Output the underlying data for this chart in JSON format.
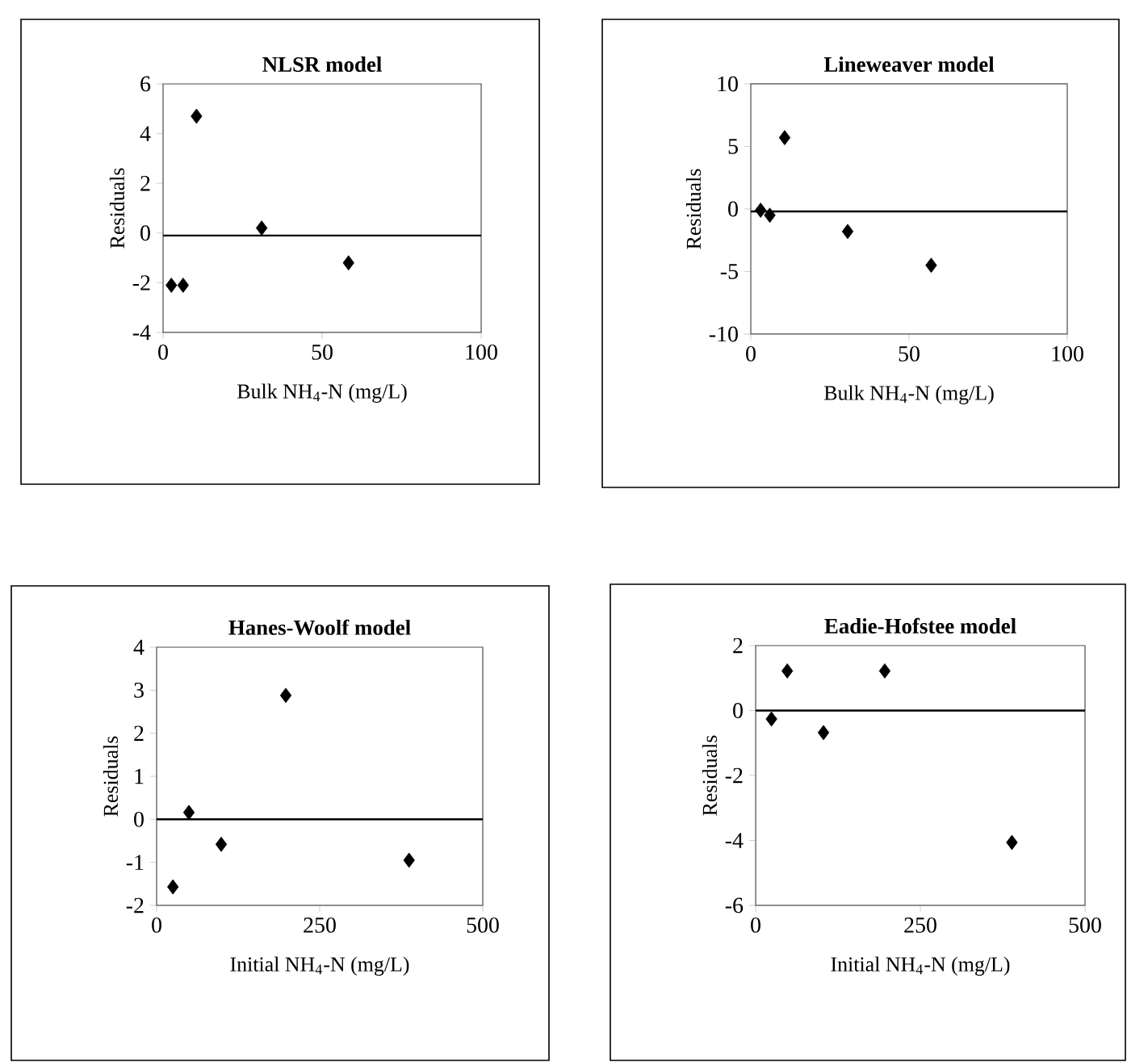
{
  "chart_data": [
    {
      "type": "scatter",
      "title": "NLSR model",
      "xlabel": "Bulk NH$_{4}$-N (mg/L)",
      "ylabel": "Residuals",
      "x": [
        2.6,
        6.3,
        10.5,
        31,
        58.3
      ],
      "series": [
        {
          "color": "#000000",
          "values": [
            -2.1,
            -2.1,
            4.7,
            0.2,
            -1.2
          ]
        }
      ],
      "xlim": [
        0,
        100
      ],
      "ylim": [
        -4,
        6
      ],
      "xticks": [
        0,
        50,
        100
      ],
      "yticks": [
        -4,
        -2,
        0,
        2,
        4,
        6
      ],
      "marker": "diamond",
      "ref_lines": [
        {
          "axis": "y",
          "value": -0.1,
          "color": "#000000"
        }
      ]
    },
    {
      "type": "scatter",
      "title": "Lineweaver model",
      "xlabel": "Bulk NH$_{4}$-N (mg/L)",
      "ylabel": "Residuals",
      "x": [
        3.1,
        6,
        10.7,
        30.6,
        57
      ],
      "series": [
        {
          "color": "#000000",
          "values": [
            -0.1,
            -0.5,
            5.7,
            -1.8,
            -4.5
          ]
        }
      ],
      "xlim": [
        0,
        100
      ],
      "ylim": [
        -10,
        10
      ],
      "xticks": [
        0,
        50,
        100
      ],
      "yticks": [
        -10,
        -5,
        0,
        5,
        10
      ],
      "marker": "diamond",
      "ref_lines": [
        {
          "axis": "y",
          "value": -0.2,
          "color": "#000000"
        }
      ]
    },
    {
      "type": "scatter",
      "title": "Hanes-Woolf model",
      "xlabel": "Initial  NH$_{4}$-N (mg/L)",
      "ylabel": "Residuals",
      "x": [
        25,
        49.5,
        99,
        198,
        387
      ],
      "series": [
        {
          "color": "#000000",
          "values": [
            -1.57,
            0.16,
            -0.58,
            2.88,
            -0.95
          ]
        }
      ],
      "xlim": [
        0,
        500
      ],
      "ylim": [
        -2,
        4
      ],
      "xticks": [
        0,
        250,
        500
      ],
      "yticks": [
        -2,
        -1,
        0,
        1,
        2,
        3,
        4
      ],
      "marker": "diamond",
      "ref_lines": [
        {
          "axis": "y",
          "value": 0,
          "color": "#000000"
        }
      ]
    },
    {
      "type": "scatter",
      "title": "Eadie-Hofstee model",
      "xlabel": "Initial  NH$_{4}$-N (mg/L)",
      "ylabel": "Residuals",
      "x": [
        24,
        48,
        103,
        196,
        389
      ],
      "series": [
        {
          "color": "#000000",
          "values": [
            -0.26,
            1.22,
            -0.68,
            1.22,
            -4.06
          ]
        }
      ],
      "xlim": [
        0,
        500
      ],
      "ylim": [
        -6,
        2
      ],
      "xticks": [
        0,
        250,
        500
      ],
      "yticks": [
        -6,
        -4,
        -2,
        0,
        2
      ],
      "marker": "diamond",
      "ref_lines": [
        {
          "axis": "y",
          "value": 0,
          "color": "#000000"
        }
      ]
    }
  ]
}
